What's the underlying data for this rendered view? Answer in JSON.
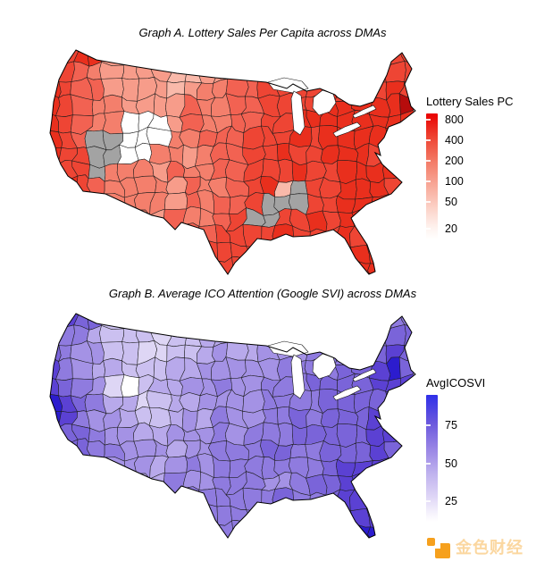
{
  "page": {
    "background": "#ffffff"
  },
  "watermark": {
    "text": "金色财经",
    "brand_color": "#f6a01d"
  },
  "chart_data": [
    {
      "type": "choropleth",
      "title": "Graph A. Lottery Sales Per Capita across DMAs",
      "region_unit": "DMA (Designated Market Area), contiguous United States",
      "legend": {
        "title": "Lottery Sales PC",
        "ticks": [
          "800",
          "400",
          "200",
          "100",
          "50",
          "20"
        ],
        "scale": "log",
        "gradient_top": "#e90000",
        "gradient_bottom": "#ffffff",
        "na_color": "#a3a3a3"
      },
      "notes": "White-to-red log scale. Gray DMAs = no lottery (Nevada; Alabama/Mississippi cluster). Utah region near white. Darkest red: Boston/Massachusetts (~800).",
      "palette": {
        "0": "#ffffff",
        "1": "#fdeae4",
        "2": "#fbd3c8",
        "3": "#f9b9aa",
        "4": "#f79c8a",
        "5": "#f47f6c",
        "6": "#f26252",
        "7": "#ee4534",
        "8": "#e92f1d",
        "9": "#b60c0c",
        "g": "#a3a3a3"
      },
      "grid": [
        "778....................7",
        "876544443344566777777777",
        "876644443455667777877787",
        "876554444655667777888889",
        "876550004655667788888888",
        "876gg0005566677787888888",
        "877gg0055456677877888788",
        "877g5554655667778778888.",
        "8876555546556783g778887.",
        ".8765555465667ggg77888..",
        ".875555465567gg7787887..",
        "..7765556667777877787...",
        "......6667777......88...",
        "...........77.......88.."
      ]
    },
    {
      "type": "choropleth",
      "title": "Graph B. Average ICO Attention (Google SVI) across DMAs",
      "region_unit": "DMA (Designated Market Area), contiguous United States",
      "legend": {
        "title": "AvgICOSVI",
        "ticks": [
          "75",
          "50",
          "25"
        ],
        "scale": "linear",
        "gradient_top": "#2f2fe9",
        "gradient_bottom": "#ffffff"
      },
      "notes": "White-to-blue scale. Darkest: San Francisco Bay Area and New York City; Mountain West and Upper Midwest lightest; Florida relatively dark.",
      "palette": {
        "0": "#ffffff",
        "1": "#f0ecfa",
        "2": "#ded6f5",
        "3": "#cbc0f0",
        "4": "#b8a9eb",
        "5": "#a492e5",
        "6": "#8f7bdf",
        "7": "#7a64d9",
        "8": "#5b41d3",
        "9": "#2c1cce",
        "g": "#bbbbbb"
      },
      "grid": [
        "787....................6",
        "766433323344455666666677",
        "765533223345445556667787",
        "865443334455555666677897",
        "876520344556556667777888",
        "987644234455556666777787",
        "986554334546556676777877",
        "87765544555656667777788.",
        "87766555455666776677787.",
        ".776555456566666667888..",
        ".765554465566655677887..",
        "..7655456666666766788...",
        "......6666666......88...",
        "...........66.......99.."
      ]
    }
  ]
}
